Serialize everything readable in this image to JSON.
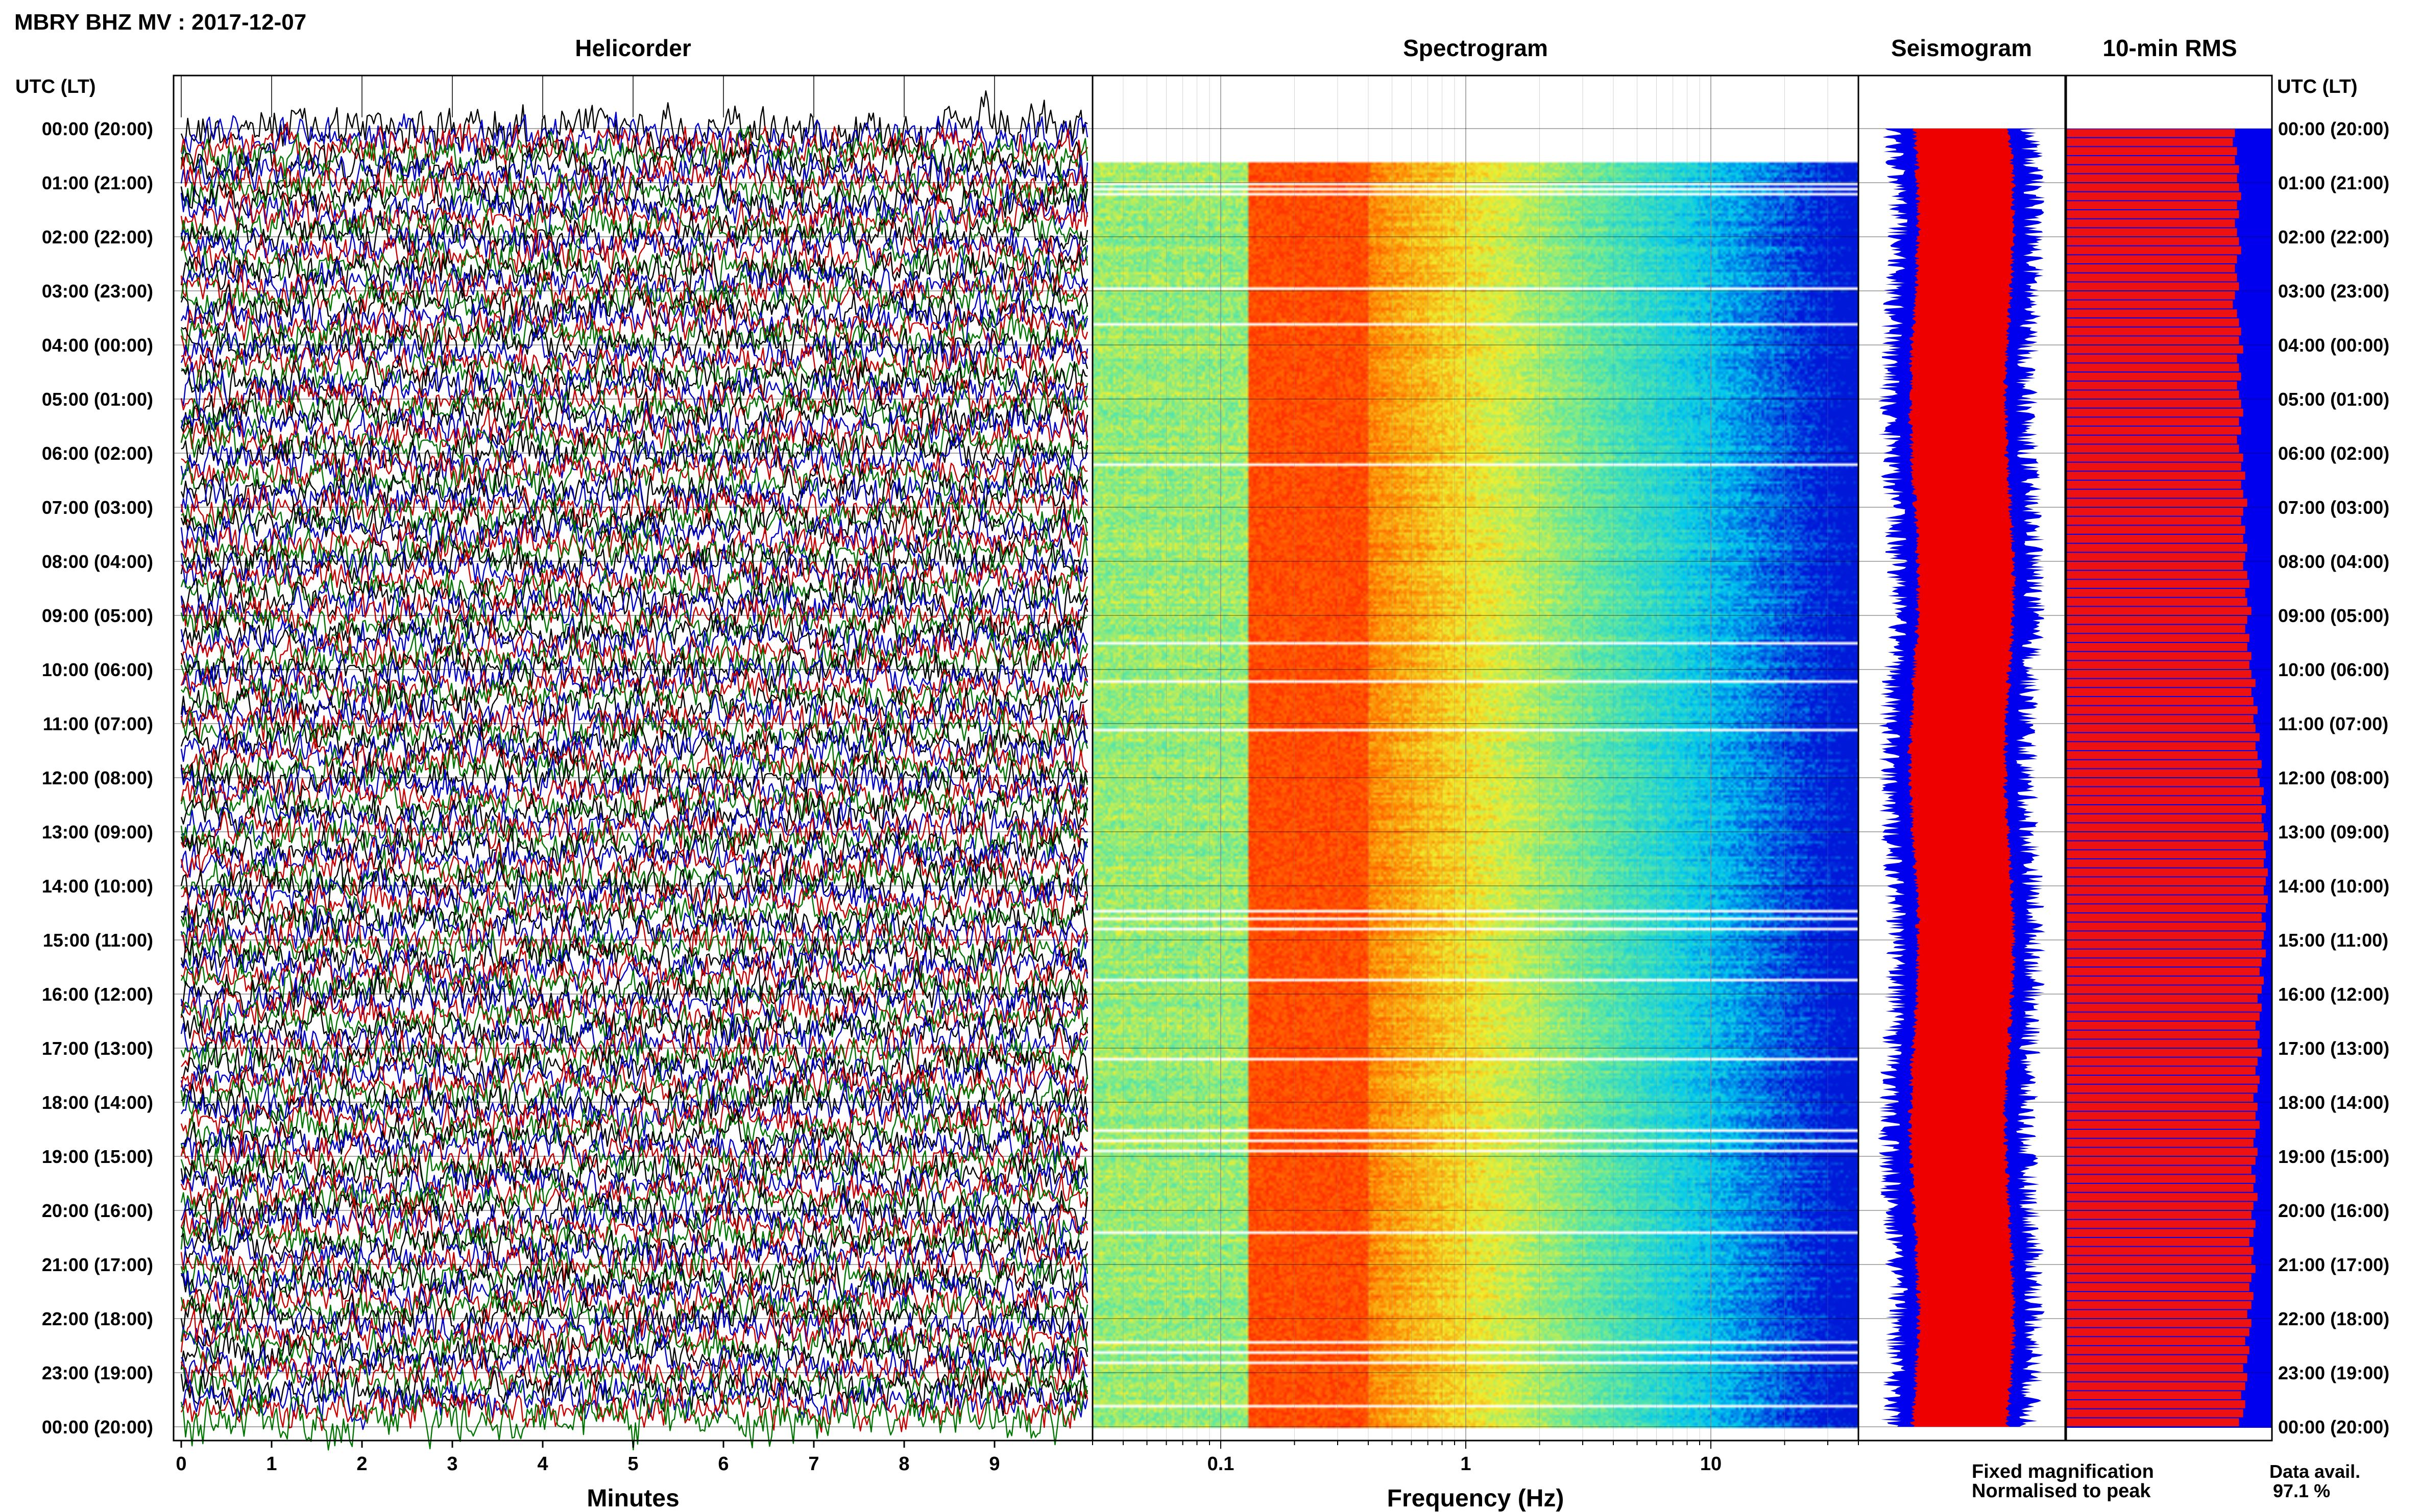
{
  "header": {
    "station_title": "MBRY BHZ MV : 2017-12-07",
    "time_axis_label": "UTC (LT)"
  },
  "panels": {
    "helicorder": "Helicorder",
    "spectrogram": "Spectrogram",
    "seismogram": "Seismogram",
    "rms": "10-min RMS"
  },
  "row_labels": [
    "00:00 (20:00)",
    "01:00 (21:00)",
    "02:00 (22:00)",
    "03:00 (23:00)",
    "04:00 (00:00)",
    "05:00 (01:00)",
    "06:00 (02:00)",
    "07:00 (03:00)",
    "08:00 (04:00)",
    "09:00 (05:00)",
    "10:00 (06:00)",
    "11:00 (07:00)",
    "12:00 (08:00)",
    "13:00 (09:00)",
    "14:00 (10:00)",
    "15:00 (11:00)",
    "16:00 (12:00)",
    "17:00 (13:00)",
    "18:00 (14:00)",
    "19:00 (15:00)",
    "20:00 (16:00)",
    "21:00 (17:00)",
    "22:00 (18:00)",
    "23:00 (19:00)",
    "00:00 (20:00)"
  ],
  "helicorder_axis": {
    "xlabel": "Minutes",
    "ticks": [
      "0",
      "1",
      "2",
      "3",
      "4",
      "5",
      "6",
      "7",
      "8",
      "9"
    ]
  },
  "spectrogram_axis": {
    "xlabel": "Frequency (Hz)",
    "ticks": [
      "0.1",
      "1",
      "10"
    ]
  },
  "legend": {
    "fixed": "Fixed magnification",
    "normalised": "Normalised to peak",
    "fixed_color": "#0000ee",
    "normalised_color": "#ee0000"
  },
  "data_availability": {
    "label": "Data avail.",
    "value": "97.1 %"
  },
  "colors": {
    "trace_cycle": [
      "#000000",
      "#0000cc",
      "#cc0000",
      "#007700"
    ],
    "spectrogram_scale": [
      "#0018d8",
      "#00c8f0",
      "#60e8a0",
      "#f0f030",
      "#ff8000",
      "#ff1800"
    ],
    "rms_bar": "#ee1111",
    "rms_fixed_bg": "#0000ee",
    "seis_fixed": "#0000ee",
    "seis_norm": "#ee0000"
  },
  "chart_data": [
    {
      "type": "line",
      "title": "Helicorder",
      "xlabel": "Minutes",
      "xlim": [
        0,
        10
      ],
      "rows": 144,
      "minutes_per_row": 10,
      "row_label_interval_hours": 1,
      "series_colors": [
        "black",
        "blue",
        "red",
        "green"
      ]
    },
    {
      "type": "heatmap",
      "title": "Spectrogram",
      "xlabel": "Frequency (Hz)",
      "xscale": "log",
      "xlim": [
        0.03,
        40
      ],
      "xticks": [
        0.1,
        1,
        10
      ],
      "peak_frequency_band_hz": [
        0.14,
        0.4
      ],
      "data_gap_hours": [
        0.4,
        0.55,
        1.0,
        1.1,
        1.2,
        2.95,
        3.6,
        6.2,
        9.5,
        10.2,
        11.1,
        14.45,
        14.6,
        14.75,
        15.7,
        17.2,
        18.5,
        18.7,
        18.9,
        20.4,
        22.4,
        22.6,
        22.8,
        23.6
      ]
    },
    {
      "type": "area",
      "title": "Seismogram",
      "series": [
        {
          "name": "Fixed magnification",
          "relative_width": 0.62
        },
        {
          "name": "Normalised to peak",
          "relative_width": 0.48
        }
      ]
    },
    {
      "type": "bar",
      "title": "10-min RMS",
      "orientation": "horizontal",
      "bars": 144,
      "relative_values": [
        0.82,
        0.81,
        0.83,
        0.82,
        0.84,
        0.83,
        0.84,
        0.85,
        0.83,
        0.84,
        0.82,
        0.83,
        0.84,
        0.85,
        0.83,
        0.82,
        0.83,
        0.84,
        0.82,
        0.81,
        0.83,
        0.84,
        0.85,
        0.84,
        0.86,
        0.83,
        0.84,
        0.85,
        0.83,
        0.84,
        0.85,
        0.86,
        0.84,
        0.85,
        0.83,
        0.84,
        0.86,
        0.85,
        0.87,
        0.85,
        0.86,
        0.88,
        0.86,
        0.85,
        0.87,
        0.86,
        0.88,
        0.87,
        0.86,
        0.88,
        0.89,
        0.87,
        0.88,
        0.9,
        0.88,
        0.87,
        0.89,
        0.88,
        0.9,
        0.89,
        0.9,
        0.92,
        0.9,
        0.91,
        0.93,
        0.91,
        0.92,
        0.94,
        0.92,
        0.93,
        0.95,
        0.93,
        0.94,
        0.96,
        0.95,
        0.97,
        0.95,
        0.96,
        0.98,
        0.96,
        0.97,
        0.96,
        0.98,
        0.97,
        0.96,
        0.98,
        0.97,
        0.95,
        0.97,
        0.96,
        0.95,
        0.97,
        0.95,
        0.94,
        0.96,
        0.95,
        0.93,
        0.95,
        0.94,
        0.92,
        0.94,
        0.93,
        0.95,
        0.93,
        0.92,
        0.94,
        0.93,
        0.91,
        0.93,
        0.92,
        0.94,
        0.92,
        0.91,
        0.93,
        0.92,
        0.9,
        0.92,
        0.91,
        0.93,
        0.91,
        0.9,
        0.92,
        0.91,
        0.89,
        0.91,
        0.9,
        0.92,
        0.9,
        0.89,
        0.91,
        0.9,
        0.88,
        0.9,
        0.89,
        0.87,
        0.89,
        0.88,
        0.86,
        0.88,
        0.87,
        0.85,
        0.87,
        0.86,
        0.84
      ]
    }
  ]
}
